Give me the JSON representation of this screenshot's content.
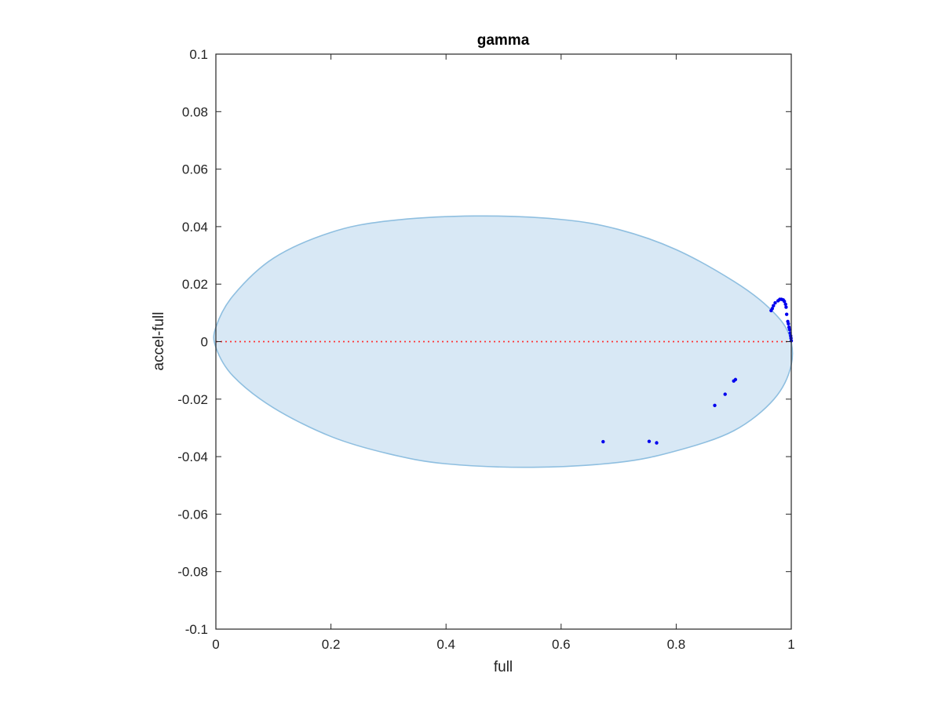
{
  "chart_data": {
    "type": "scatter",
    "title": "gamma",
    "xlabel": "full",
    "ylabel": "accel-full",
    "xlim": [
      0,
      1
    ],
    "ylim": [
      -0.1,
      0.1
    ],
    "xticks": [
      0,
      0.2,
      0.4,
      0.6,
      0.8,
      1
    ],
    "xtick_labels": [
      "0",
      "0.2",
      "0.4",
      "0.6",
      "0.8",
      "1"
    ],
    "yticks": [
      -0.1,
      -0.08,
      -0.06,
      -0.04,
      -0.02,
      0,
      0.02,
      0.04,
      0.06,
      0.08,
      0.1
    ],
    "ytick_labels": [
      "-0.1",
      "-0.08",
      "-0.06",
      "-0.04",
      "-0.02",
      "0",
      "0.02",
      "0.04",
      "0.06",
      "0.08",
      "0.1"
    ],
    "grid": false,
    "region": {
      "shape": "ellipse",
      "boundary": [
        [
          0,
          0.005
        ],
        [
          0.03,
          0.016
        ],
        [
          0.1,
          0.029
        ],
        [
          0.2,
          0.038
        ],
        [
          0.3,
          0.042
        ],
        [
          0.45,
          0.0437
        ],
        [
          0.6,
          0.0425
        ],
        [
          0.7,
          0.039
        ],
        [
          0.8,
          0.032
        ],
        [
          0.9,
          0.021
        ],
        [
          0.96,
          0.012
        ],
        [
          0.995,
          0.003
        ],
        [
          1,
          -0.008
        ],
        [
          0.97,
          -0.02
        ],
        [
          0.9,
          -0.031
        ],
        [
          0.8,
          -0.038
        ],
        [
          0.7,
          -0.042
        ],
        [
          0.55,
          -0.0437
        ],
        [
          0.4,
          -0.0425
        ],
        [
          0.3,
          -0.039
        ],
        [
          0.2,
          -0.033
        ],
        [
          0.1,
          -0.023
        ],
        [
          0.03,
          -0.012
        ],
        [
          0,
          -0.002
        ]
      ],
      "fill_color": "#d8e8f5",
      "edge_color": "#8fbfe0"
    },
    "reference_line": {
      "y": 0,
      "style": "dotted",
      "color": "#ff3333"
    },
    "series": [
      {
        "color": "#0000ee",
        "points": [
          [
            0.673,
            -0.0348
          ],
          [
            0.753,
            -0.0347
          ],
          [
            0.766,
            -0.0352
          ],
          [
            0.867,
            -0.0222
          ],
          [
            0.885,
            -0.0183
          ],
          [
            0.9,
            -0.0137
          ],
          [
            0.903,
            -0.0132
          ],
          [
            0.965,
            0.0108
          ],
          [
            0.967,
            0.0115
          ],
          [
            0.969,
            0.0125
          ],
          [
            0.972,
            0.0135
          ],
          [
            0.977,
            0.0142
          ],
          [
            0.98,
            0.0147
          ],
          [
            0.983,
            0.0147
          ],
          [
            0.986,
            0.0145
          ],
          [
            0.988,
            0.014
          ],
          [
            0.99,
            0.013
          ],
          [
            0.991,
            0.012
          ],
          [
            0.992,
            0.0095
          ],
          [
            0.994,
            0.007
          ],
          [
            0.995,
            0.0062
          ],
          [
            0.996,
            0.005
          ],
          [
            0.997,
            0.0042
          ],
          [
            0.998,
            0.003
          ],
          [
            0.999,
            0.002
          ],
          [
            0.9995,
            0.0012
          ],
          [
            1.0,
            0.0003
          ]
        ]
      }
    ]
  }
}
